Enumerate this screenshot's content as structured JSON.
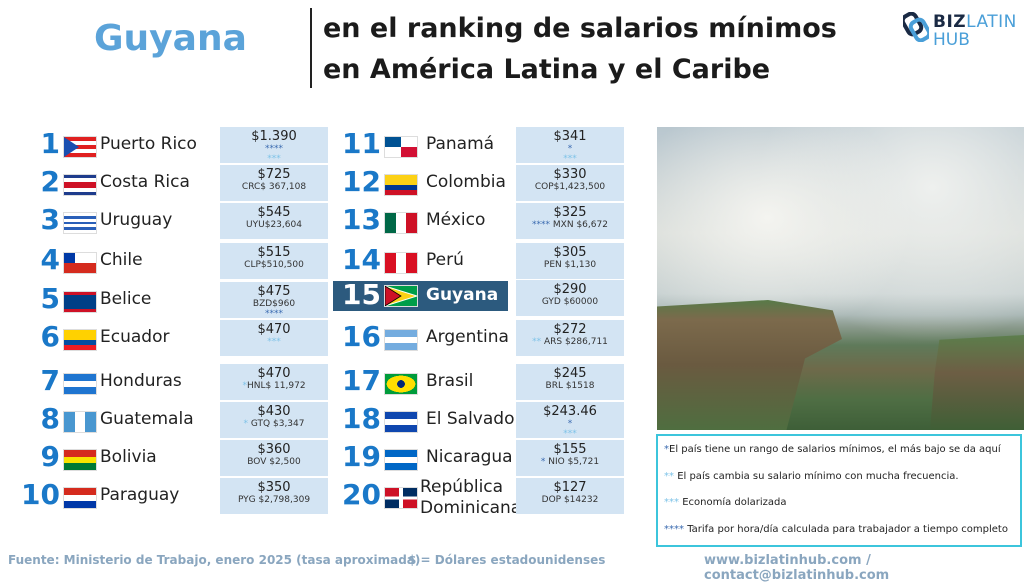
{
  "header": {
    "country": "Guyana",
    "title_line1": "en el ranking de salarios mínimos",
    "title_line2": "en América Latina y el Caribe"
  },
  "logo": {
    "biz": "BIZ",
    "latin": "LATIN",
    "hub": "HUB"
  },
  "colors": {
    "accent": "#1a78c8",
    "highlight": "#2c5a7e",
    "box": "#d3e4f3",
    "legend_border": "#3cc5dc"
  },
  "rows": [
    {
      "rank": "1",
      "name": "Puerto Rico",
      "usd": "$1.390",
      "flag": [
        "#e02020",
        "#fff",
        "#e02020",
        "#fff",
        "#e02020"
      ],
      "tri": "#1a4fb0",
      "lines": [
        [
          {
            "t": "****",
            "c": "m1"
          }
        ],
        [
          {
            "t": "***",
            "c": "m2"
          }
        ]
      ]
    },
    {
      "rank": "2",
      "name": "Costa Rica",
      "usd": "$725",
      "flag": [
        "#1e3c8c",
        "#fff",
        "#ce1126",
        "#ce1126",
        "#fff",
        "#1e3c8c"
      ],
      "lines": [
        [
          {
            "t": "CRC$ 367,108"
          }
        ]
      ]
    },
    {
      "rank": "3",
      "name": "Uruguay",
      "usd": "$545",
      "flag": [
        "#fff",
        "#2a5fb8",
        "#fff",
        "#2a5fb8",
        "#fff",
        "#2a5fb8",
        "#fff"
      ],
      "lines": [
        [
          {
            "t": "UYU$23,604"
          }
        ]
      ]
    },
    {
      "rank": "4",
      "name": "Chile",
      "usd": "$515",
      "flag": [
        "#fff",
        "#d52b1e"
      ],
      "canton": "#0039a6",
      "lines": [
        [
          {
            "t": "CLP$510,500"
          }
        ]
      ]
    },
    {
      "rank": "5",
      "name": "Belice",
      "usd": "$475",
      "flag": [
        "#ce1126",
        "#003f87",
        "#003f87",
        "#003f87",
        "#003f87",
        "#ce1126"
      ],
      "lines": [
        [
          {
            "t": "BZD$960"
          }
        ],
        [
          {
            "t": "****",
            "c": "m1"
          }
        ]
      ]
    },
    {
      "rank": "6",
      "name": "Ecuador",
      "usd": "$470",
      "flag": [
        "#ffd100",
        "#ffd100",
        "#034ea2",
        "#ed1c24"
      ],
      "lines": [
        [
          {
            "t": "***",
            "c": "m2"
          }
        ]
      ]
    },
    {
      "rank": "7",
      "name": "Honduras",
      "usd": "$470",
      "flag": [
        "#1f75d0",
        "#fff",
        "#1f75d0"
      ],
      "lines": [
        [
          {
            "t": "*",
            "c": "m2"
          },
          {
            "t": "HNL$ 11,972"
          }
        ]
      ]
    },
    {
      "rank": "8",
      "name": "Guatemala",
      "usd": "$430",
      "flag": [
        "#4997d0",
        "#fff",
        "#4997d0"
      ],
      "vertical": true,
      "lines": [
        [
          {
            "t": "* ",
            "c": "m2"
          },
          {
            "t": "GTQ $3,347"
          }
        ]
      ]
    },
    {
      "rank": "9",
      "name": "Bolivia",
      "usd": "$360",
      "flag": [
        "#d52b1e",
        "#f9e300",
        "#007934"
      ],
      "lines": [
        [
          {
            "t": "BOV $2,500"
          }
        ]
      ]
    },
    {
      "rank": "10",
      "name": "Paraguay",
      "usd": "$350",
      "flag": [
        "#d52b1e",
        "#fff",
        "#0038a8"
      ],
      "lines": [
        [
          {
            "t": "PYG $2,798,309"
          }
        ]
      ]
    },
    {
      "rank": "11",
      "name": "Panamá",
      "usd": "$341",
      "flag": [
        "#fff",
        "#d21034",
        "#005293",
        "#fff"
      ],
      "quad": true,
      "lines": [
        [
          {
            "t": "*",
            "c": "m1"
          }
        ],
        [
          {
            "t": "***",
            "c": "m2"
          }
        ]
      ]
    },
    {
      "rank": "12",
      "name": "Colombia",
      "usd": "$330",
      "flag": [
        "#fcd116",
        "#fcd116",
        "#003893",
        "#ce1126"
      ],
      "lines": [
        [
          {
            "t": "COP$1,423,500"
          }
        ]
      ]
    },
    {
      "rank": "13",
      "name": "México",
      "usd": "$325",
      "flag": [
        "#006847",
        "#fff",
        "#ce1126"
      ],
      "vertical": true,
      "lines": [
        [
          {
            "t": "**** ",
            "c": "m1"
          },
          {
            "t": " MXN $6,672"
          }
        ]
      ]
    },
    {
      "rank": "14",
      "name": "Perú",
      "usd": "$305",
      "flag": [
        "#d91023",
        "#fff",
        "#d91023"
      ],
      "vertical": true,
      "lines": [
        [
          {
            "t": "PEN $1,130"
          }
        ]
      ]
    },
    {
      "rank": "15",
      "name": "Guyana",
      "usd": "$290",
      "flag": [
        "#009e49"
      ],
      "guyana": true,
      "lines": [
        [
          {
            "t": "GYD $60000"
          }
        ]
      ]
    },
    {
      "rank": "16",
      "name": "Argentina",
      "usd": "$272",
      "flag": [
        "#74acdf",
        "#fff",
        "#74acdf"
      ],
      "lines": [
        [
          {
            "t": "** ",
            "c": "m2"
          },
          {
            "t": "ARS $286,711"
          }
        ]
      ]
    },
    {
      "rank": "17",
      "name": "Brasil",
      "usd": "$245",
      "flag": [
        "#009c3b"
      ],
      "brasil": true,
      "lines": [
        [
          {
            "t": "BRL $1518"
          }
        ]
      ]
    },
    {
      "rank": "18",
      "name": "El Salvador",
      "usd": "$243.46",
      "flag": [
        "#0f47af",
        "#fff",
        "#0f47af"
      ],
      "lines": [
        [
          {
            "t": "*",
            "c": "m1"
          }
        ],
        [
          {
            "t": "***",
            "c": "m2"
          }
        ]
      ]
    },
    {
      "rank": "19",
      "name": "Nicaragua",
      "usd": "$155",
      "flag": [
        "#0067c6",
        "#fff",
        "#0067c6"
      ],
      "lines": [
        [
          {
            "t": "* ",
            "c": "m1"
          },
          {
            "t": " NIO  $5,721"
          }
        ]
      ]
    },
    {
      "rank": "20",
      "name": "República Dominicana",
      "name1": "República",
      "name2": "Dominicana",
      "usd": "$127",
      "flag": [
        "#002d62",
        "#ce1126",
        "#002d62"
      ],
      "quad": true,
      "dr": true,
      "lines": [
        [
          {
            "t": "DOP $14232"
          }
        ]
      ]
    }
  ],
  "legend": [
    [
      {
        "t": "*",
        "c": "m1"
      },
      {
        "t": "El país tiene un rango de salarios mínimos, el más bajo se da aquí"
      }
    ],
    [
      {
        "t": "** ",
        "c": "m2"
      },
      {
        "t": "El país cambia su salario mínimo con mucha frecuencia."
      }
    ],
    [
      {
        "t": "*** ",
        "c": "m2"
      },
      {
        "t": "Economía dolarizada"
      }
    ],
    [
      {
        "t": "**** ",
        "c": "m1"
      },
      {
        "t": "Tarifa por hora/día calculada para trabajador a tiempo completo"
      }
    ]
  ],
  "footer": {
    "source": "Fuente: Ministerio de Trabajo, enero 2025 (tasa aproximada)",
    "usd_note": "$ = Dólares estadounidenses",
    "site": "www.bizlatinhub.com / contact@bizlatinhub.com"
  }
}
